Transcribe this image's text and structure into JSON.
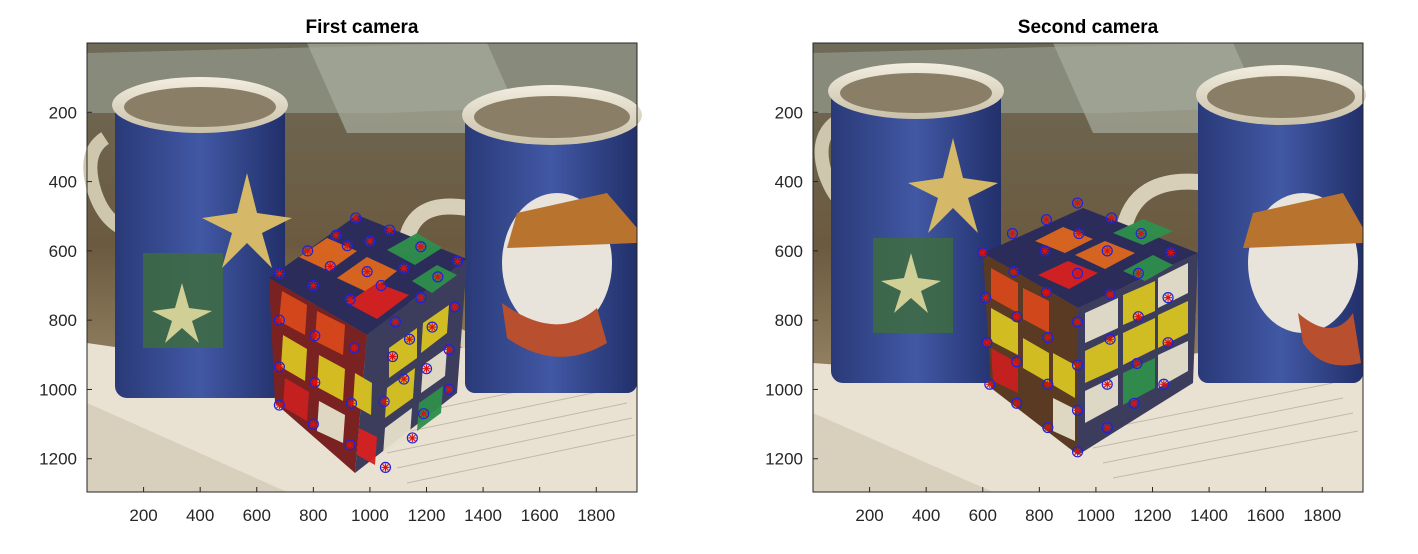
{
  "chart_data": [
    {
      "type": "scatter",
      "title": "First camera",
      "xlabel": "",
      "ylabel": "",
      "xlim": [
        0,
        1944
      ],
      "ylim": [
        1296,
        0
      ],
      "y_reversed": true,
      "xticks": [
        "200",
        "400",
        "600",
        "800",
        "1000",
        "1200",
        "1400",
        "1600",
        "1800"
      ],
      "yticks": [
        "200",
        "400",
        "600",
        "800",
        "1000",
        "1200"
      ],
      "background": "photo of two mugs with snowman and starfish prints and a Rubik's cube on newspaper",
      "marker_colors": {
        "circle": "#2222dd",
        "cross": "#dd1111"
      },
      "points": [
        {
          "x": 950,
          "y": 505
        },
        {
          "x": 1070,
          "y": 540
        },
        {
          "x": 880,
          "y": 555
        },
        {
          "x": 1000,
          "y": 572
        },
        {
          "x": 780,
          "y": 600
        },
        {
          "x": 1180,
          "y": 588
        },
        {
          "x": 920,
          "y": 585
        },
        {
          "x": 1310,
          "y": 630
        },
        {
          "x": 680,
          "y": 665
        },
        {
          "x": 860,
          "y": 645
        },
        {
          "x": 990,
          "y": 660
        },
        {
          "x": 1120,
          "y": 650
        },
        {
          "x": 1240,
          "y": 675
        },
        {
          "x": 800,
          "y": 700
        },
        {
          "x": 1040,
          "y": 700
        },
        {
          "x": 930,
          "y": 740
        },
        {
          "x": 1180,
          "y": 735
        },
        {
          "x": 1300,
          "y": 762
        },
        {
          "x": 680,
          "y": 800
        },
        {
          "x": 1090,
          "y": 805
        },
        {
          "x": 1220,
          "y": 820
        },
        {
          "x": 805,
          "y": 845
        },
        {
          "x": 945,
          "y": 880
        },
        {
          "x": 1140,
          "y": 855
        },
        {
          "x": 1280,
          "y": 885
        },
        {
          "x": 680,
          "y": 935
        },
        {
          "x": 1080,
          "y": 905
        },
        {
          "x": 1200,
          "y": 940
        },
        {
          "x": 805,
          "y": 980
        },
        {
          "x": 1120,
          "y": 970
        },
        {
          "x": 1280,
          "y": 1000
        },
        {
          "x": 680,
          "y": 1045
        },
        {
          "x": 935,
          "y": 1040
        },
        {
          "x": 1050,
          "y": 1035
        },
        {
          "x": 1190,
          "y": 1070
        },
        {
          "x": 800,
          "y": 1100
        },
        {
          "x": 930,
          "y": 1160
        },
        {
          "x": 1150,
          "y": 1140
        },
        {
          "x": 1055,
          "y": 1225
        }
      ]
    },
    {
      "type": "scatter",
      "title": "Second camera",
      "xlabel": "",
      "ylabel": "",
      "xlim": [
        0,
        1944
      ],
      "ylim": [
        1296,
        0
      ],
      "y_reversed": true,
      "xticks": [
        "200",
        "400",
        "600",
        "800",
        "1000",
        "1200",
        "1400",
        "1600",
        "1800"
      ],
      "yticks": [
        "200",
        "400",
        "600",
        "800",
        "1000",
        "1200"
      ],
      "background": "photo of two mugs with snowman and starfish prints and a Rubik's cube on newspaper",
      "marker_colors": {
        "circle": "#2222dd",
        "cross": "#dd1111"
      },
      "points": [
        {
          "x": 935,
          "y": 462
        },
        {
          "x": 1055,
          "y": 505
        },
        {
          "x": 825,
          "y": 510
        },
        {
          "x": 940,
          "y": 550
        },
        {
          "x": 705,
          "y": 550
        },
        {
          "x": 1160,
          "y": 550
        },
        {
          "x": 1040,
          "y": 600
        },
        {
          "x": 820,
          "y": 600
        },
        {
          "x": 600,
          "y": 605
        },
        {
          "x": 1265,
          "y": 605
        },
        {
          "x": 710,
          "y": 660
        },
        {
          "x": 935,
          "y": 665
        },
        {
          "x": 1150,
          "y": 665
        },
        {
          "x": 825,
          "y": 720
        },
        {
          "x": 1050,
          "y": 725
        },
        {
          "x": 610,
          "y": 735
        },
        {
          "x": 1255,
          "y": 735
        },
        {
          "x": 720,
          "y": 790
        },
        {
          "x": 935,
          "y": 805
        },
        {
          "x": 1150,
          "y": 790
        },
        {
          "x": 830,
          "y": 850
        },
        {
          "x": 1050,
          "y": 855
        },
        {
          "x": 615,
          "y": 865
        },
        {
          "x": 1255,
          "y": 865
        },
        {
          "x": 720,
          "y": 920
        },
        {
          "x": 935,
          "y": 930
        },
        {
          "x": 1145,
          "y": 925
        },
        {
          "x": 830,
          "y": 985
        },
        {
          "x": 1040,
          "y": 985
        },
        {
          "x": 625,
          "y": 985
        },
        {
          "x": 1240,
          "y": 985
        },
        {
          "x": 720,
          "y": 1040
        },
        {
          "x": 935,
          "y": 1060
        },
        {
          "x": 1135,
          "y": 1040
        },
        {
          "x": 830,
          "y": 1110
        },
        {
          "x": 1040,
          "y": 1110
        },
        {
          "x": 935,
          "y": 1180
        }
      ]
    }
  ]
}
